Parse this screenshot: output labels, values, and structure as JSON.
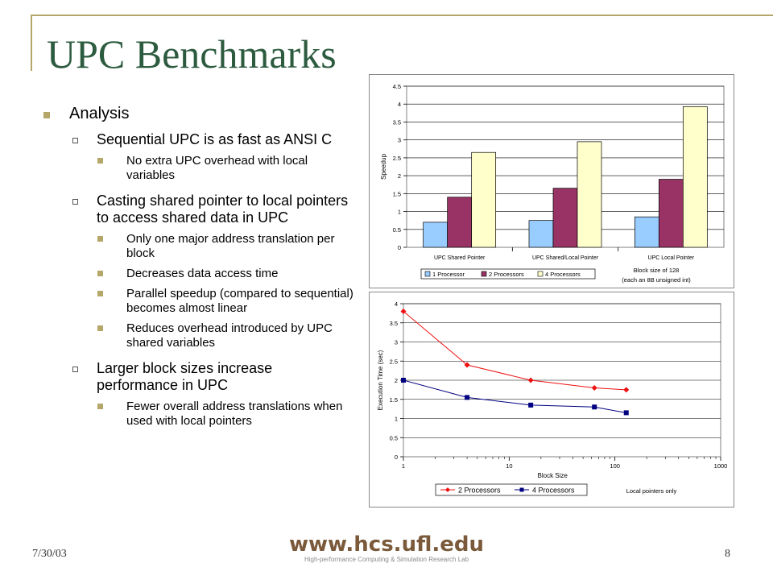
{
  "slide": {
    "title": "UPC Benchmarks",
    "date": "7/30/03",
    "page_number": "8",
    "logo": {
      "main": "www.hcs.ufl.edu",
      "sub": "High-performance Computing & Simulation Research Lab"
    }
  },
  "bullets": {
    "heading": "Analysis",
    "items": [
      {
        "text": "Sequential UPC is as fast as ANSI C",
        "sub": [
          "No extra UPC overhead with local variables"
        ]
      },
      {
        "text": "Casting shared pointer to local pointers to access shared data in UPC",
        "sub": [
          "Only one major address translation per block",
          "Decreases data access time",
          "Parallel speedup (compared to sequential) becomes almost linear",
          "Reduces overhead introduced by UPC shared variables"
        ]
      },
      {
        "text": "Larger block sizes increase performance in UPC",
        "sub": [
          "Fewer overall address translations when used with local pointers"
        ]
      }
    ]
  },
  "chart_data": [
    {
      "type": "bar",
      "categories": [
        "UPC Shared Pointer",
        "UPC Shared/Local Pointer",
        "UPC Local Pointer"
      ],
      "series": [
        {
          "name": "1 Processor",
          "color": "#99ccff",
          "values": [
            0.7,
            0.75,
            0.85
          ]
        },
        {
          "name": "2 Processors",
          "color": "#993366",
          "values": [
            1.4,
            1.65,
            1.9
          ]
        },
        {
          "name": "4 Processors",
          "color": "#ffffcc",
          "values": [
            2.65,
            2.95,
            3.93
          ]
        }
      ],
      "ylabel": "Speedup",
      "ylim": [
        0,
        4.5
      ],
      "yticks": [
        "0",
        "0.5",
        "1",
        "1.5",
        "2",
        "2.5",
        "3",
        "3.5",
        "4",
        "4.5"
      ],
      "note": [
        "Block size of 128",
        "(each an 8B unsigned int)"
      ],
      "legend": "bottom"
    },
    {
      "type": "line",
      "xscale": "log",
      "xlabel": "Block Size",
      "ylabel": "Execution Time (sec)",
      "xlim": [
        1,
        1000
      ],
      "ylim": [
        0,
        4
      ],
      "xticks": [
        "1",
        "10",
        "100",
        "1000"
      ],
      "yticks": [
        "0",
        "0.5",
        "1",
        "1.5",
        "2",
        "2.5",
        "3",
        "3.5",
        "4"
      ],
      "series": [
        {
          "name": "2 Processors",
          "color": "#ee1111",
          "marker": "diamond",
          "x": [
            1,
            4,
            16,
            64,
            128
          ],
          "y": [
            3.8,
            2.4,
            2.0,
            1.8,
            1.75
          ]
        },
        {
          "name": "4 Processors",
          "color": "#000080",
          "marker": "square",
          "x": [
            1,
            4,
            16,
            64,
            128
          ],
          "y": [
            2.0,
            1.55,
            1.35,
            1.3,
            1.15
          ]
        }
      ],
      "note": "Local pointers only",
      "legend": "bottom"
    }
  ]
}
